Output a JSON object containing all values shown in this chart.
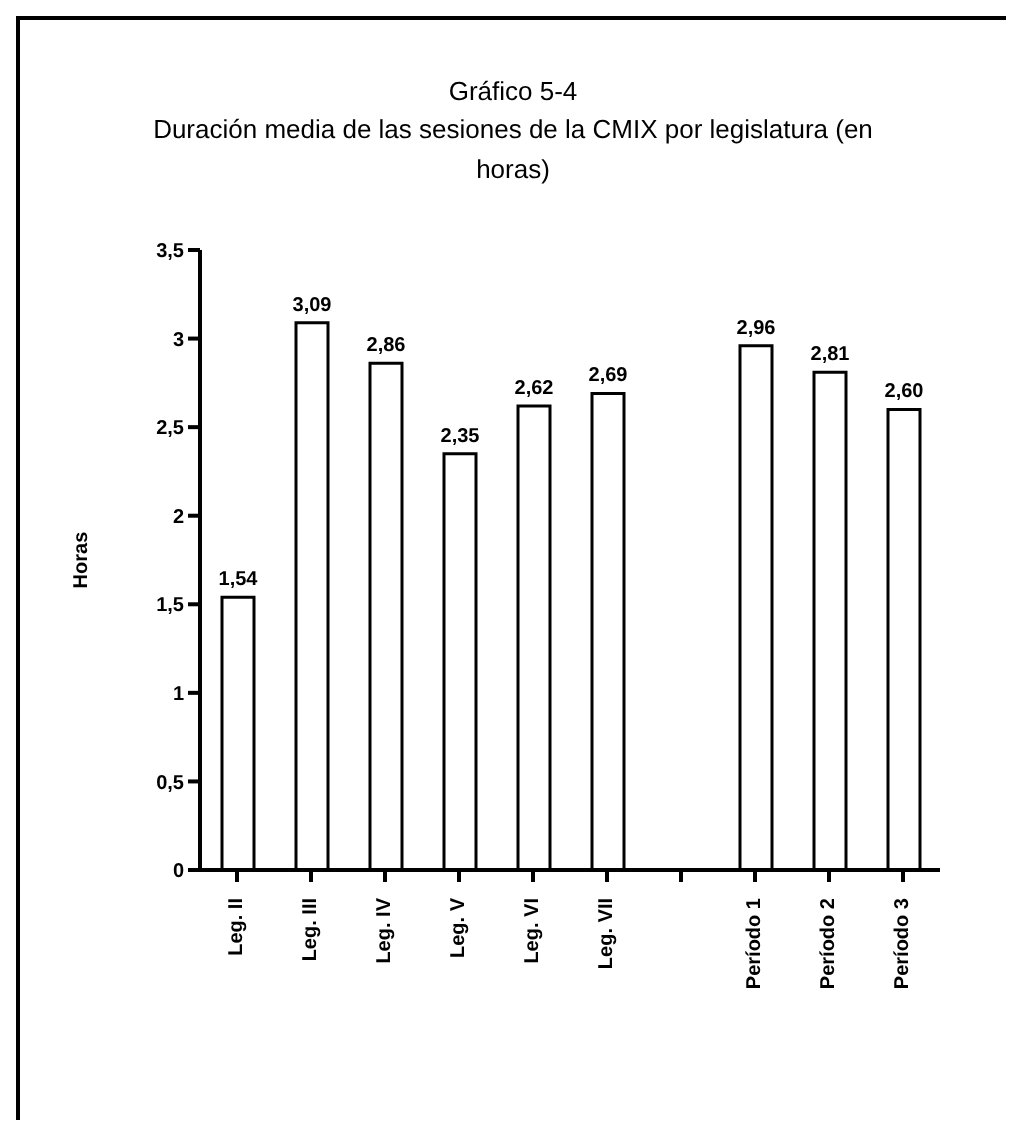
{
  "chart_data": {
    "type": "bar",
    "title": "Gráfico 5-4",
    "subtitle": "Duración media de las  sesiones de la CMIX por legislatura  (en horas)",
    "ylabel": "Horas",
    "categories": [
      "Leg. II",
      "Leg. III",
      "Leg. IV",
      "Leg. V",
      "Leg. VI",
      "Leg. VII",
      null,
      "Período 1",
      "Período 2",
      "Período 3"
    ],
    "values": [
      1.54,
      3.09,
      2.86,
      2.35,
      2.62,
      2.69,
      null,
      2.96,
      2.81,
      2.6
    ],
    "value_labels": [
      "1,54",
      "3,09",
      "2,86",
      "2,35",
      "2,62",
      "2,69",
      null,
      "2,96",
      "2,81",
      "2,60"
    ],
    "color": "#ffffff",
    "ylim": [
      0,
      3.5
    ],
    "yticks": [
      0,
      {
        "value": 0.5,
        "label": "0,5"
      },
      1,
      {
        "value": 1.5,
        "label": "1,5"
      },
      2,
      {
        "value": 2.5,
        "label": "2,5"
      },
      3,
      {
        "value": 3.5,
        "label": "3,5"
      }
    ],
    "grid": false,
    "legend": false
  }
}
